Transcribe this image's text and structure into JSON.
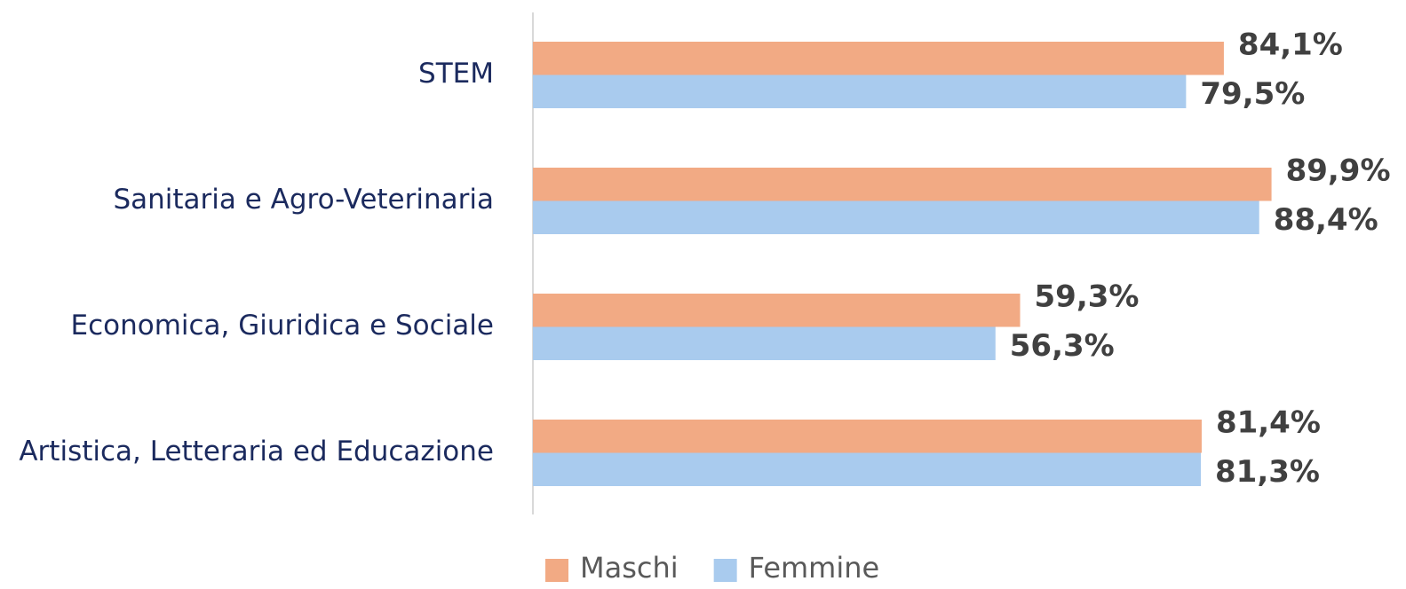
{
  "chart_data": {
    "type": "bar",
    "orientation": "horizontal",
    "categories": [
      "STEM",
      "Sanitaria e Agro-Veterinaria",
      "Economica, Giuridica e Sociale",
      "Artistica, Letteraria ed Educazione"
    ],
    "series": [
      {
        "name": "Maschi",
        "color": "#f2aa84",
        "values": [
          84.1,
          89.9,
          59.3,
          81.4
        ],
        "value_labels": [
          "84,1%",
          "89,9%",
          "59,3%",
          "81,4%"
        ]
      },
      {
        "name": "Femmine",
        "color": "#a9cbee",
        "values": [
          79.5,
          88.4,
          56.3,
          81.3
        ],
        "value_labels": [
          "79,5%",
          "88,4%",
          "56,3%",
          "81,3%"
        ]
      }
    ],
    "xlim": [
      0,
      100
    ],
    "legend": "bottom"
  }
}
